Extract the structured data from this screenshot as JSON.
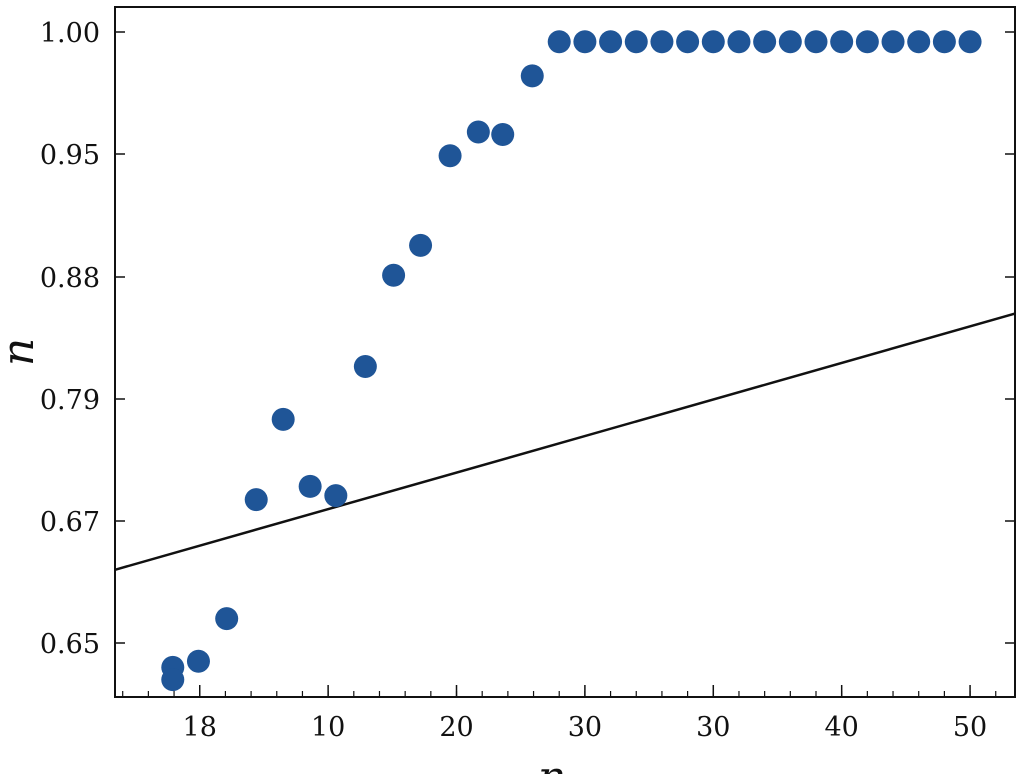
{
  "chart_data": {
    "type": "scatter",
    "title": "",
    "xlabel": "n",
    "ylabel": "n",
    "x_ticks": [
      {
        "value": -10,
        "label": "18"
      },
      {
        "value": 0,
        "label": "10"
      },
      {
        "value": 10,
        "label": "20"
      },
      {
        "value": 20,
        "label": "30"
      },
      {
        "value": 30,
        "label": "30"
      },
      {
        "value": 40,
        "label": "40"
      },
      {
        "value": 50,
        "label": "50"
      }
    ],
    "y_ticks": [
      {
        "value": 1.0,
        "label": "1.00"
      },
      {
        "value": 0.95,
        "label": "0.95"
      },
      {
        "value": 0.88,
        "label": "0.88"
      },
      {
        "value": 0.79,
        "label": "0.79"
      },
      {
        "value": 0.67,
        "label": "0.67"
      },
      {
        "value": 0.65,
        "label": "0.65"
      }
    ],
    "xlim": [
      -16.6,
      53.5
    ],
    "ylim": [
      0.638,
      1.005
    ],
    "grid": false,
    "marker_color": "#1f5597",
    "line_color": "#111111",
    "series": [
      {
        "type": "scatter",
        "points": [
          [
            -12.1,
            0.646
          ],
          [
            -12.1,
            0.644
          ],
          [
            -10.1,
            0.647
          ],
          [
            -7.9,
            0.654
          ],
          [
            -5.6,
            0.691
          ],
          [
            -3.5,
            0.77
          ],
          [
            -1.4,
            0.704
          ],
          [
            0.6,
            0.695
          ],
          [
            2.9,
            0.814
          ],
          [
            5.1,
            0.881
          ],
          [
            7.2,
            0.898
          ],
          [
            9.5,
            0.949
          ],
          [
            11.7,
            0.959
          ],
          [
            13.6,
            0.958
          ],
          [
            15.9,
            0.982
          ],
          [
            18,
            0.996
          ],
          [
            20,
            0.996
          ],
          [
            22,
            0.996
          ],
          [
            24,
            0.996
          ],
          [
            26,
            0.996
          ],
          [
            28,
            0.996
          ],
          [
            30,
            0.996
          ],
          [
            32,
            0.996
          ],
          [
            34,
            0.996
          ],
          [
            36,
            0.996
          ],
          [
            38,
            0.996
          ],
          [
            40,
            0.996
          ],
          [
            42,
            0.996
          ],
          [
            44,
            0.996
          ],
          [
            46,
            0.996
          ],
          [
            48,
            0.996
          ],
          [
            50,
            0.996
          ]
        ]
      },
      {
        "type": "line",
        "points": [
          [
            -16.6,
            0.662
          ],
          [
            53.5,
            0.853
          ]
        ]
      }
    ]
  }
}
